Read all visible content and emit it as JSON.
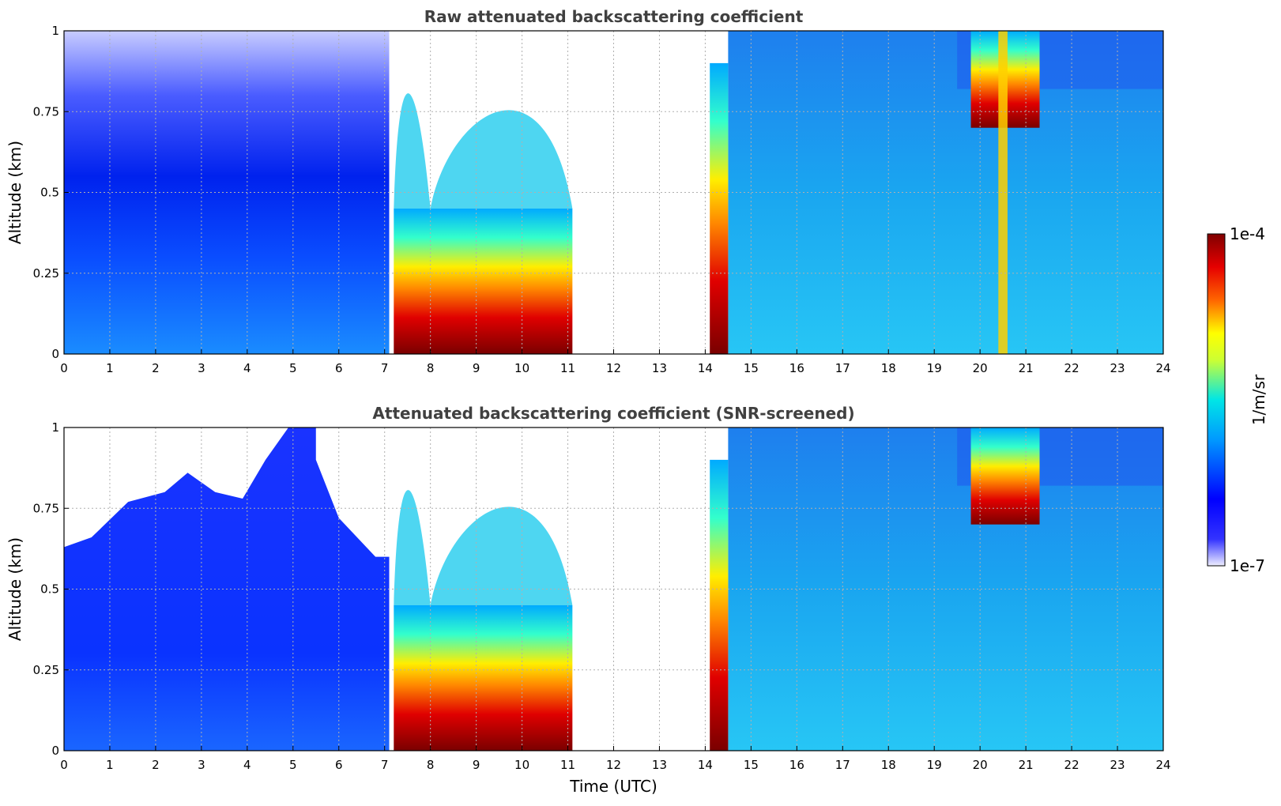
{
  "chart_data": [
    {
      "type": "heatmap",
      "title": "Raw attenuated backscattering coefficient",
      "xlabel": "",
      "ylabel": "Altitude (km)",
      "xlim": [
        0,
        24
      ],
      "ylim": [
        0,
        1
      ],
      "xticks": [
        "0",
        "1",
        "2",
        "3",
        "4",
        "5",
        "6",
        "7",
        "8",
        "9",
        "10",
        "11",
        "12",
        "13",
        "14",
        "15",
        "16",
        "17",
        "18",
        "19",
        "20",
        "21",
        "22",
        "23",
        "24"
      ],
      "yticks": [
        "0",
        "0.25",
        "0.5",
        "0.75",
        "1"
      ],
      "grid": true,
      "gaps_utc": [
        [
          11.3,
          14.0
        ]
      ],
      "cloud_regions": [
        {
          "time_utc": [
            7.2,
            11.1
          ],
          "altitude_km": [
            0,
            0.45
          ],
          "level": "high"
        },
        {
          "time_utc": [
            14.1,
            14.5
          ],
          "altitude_km": [
            0,
            0.9
          ],
          "level": "high"
        },
        {
          "time_utc": [
            19.8,
            21.3
          ],
          "altitude_km": [
            0.7,
            1.0
          ],
          "level": "high"
        },
        {
          "time_utc": [
            20.4,
            20.6
          ],
          "altitude_km": [
            0,
            1.0
          ],
          "level": "medium"
        }
      ]
    },
    {
      "type": "heatmap",
      "title": "Attenuated backscattering coefficient (SNR-screened)",
      "xlabel": "Time (UTC)",
      "ylabel": "Altitude (km)",
      "xlim": [
        0,
        24
      ],
      "ylim": [
        0,
        1
      ],
      "xticks": [
        "0",
        "1",
        "2",
        "3",
        "4",
        "5",
        "6",
        "7",
        "8",
        "9",
        "10",
        "11",
        "12",
        "13",
        "14",
        "15",
        "16",
        "17",
        "18",
        "19",
        "20",
        "21",
        "22",
        "23",
        "24"
      ],
      "yticks": [
        "0",
        "0.25",
        "0.5",
        "0.75",
        "1"
      ],
      "grid": true,
      "gaps_utc": [
        [
          11.3,
          14.0
        ]
      ],
      "cloud_regions": [
        {
          "time_utc": [
            7.2,
            11.1
          ],
          "altitude_km": [
            0,
            0.45
          ],
          "level": "high"
        },
        {
          "time_utc": [
            14.1,
            14.5
          ],
          "altitude_km": [
            0,
            0.9
          ],
          "level": "high"
        },
        {
          "time_utc": [
            19.8,
            21.3
          ],
          "altitude_km": [
            0.7,
            1.0
          ],
          "level": "high"
        }
      ]
    }
  ],
  "colorbar": {
    "label": "1/m/sr",
    "max_label": "1e-4",
    "min_label": "1e-7",
    "scale": "log",
    "colors": [
      "#eeeeff",
      "#0000ff",
      "#00ccff",
      "#ffff00",
      "#ff3300",
      "#800000"
    ]
  }
}
